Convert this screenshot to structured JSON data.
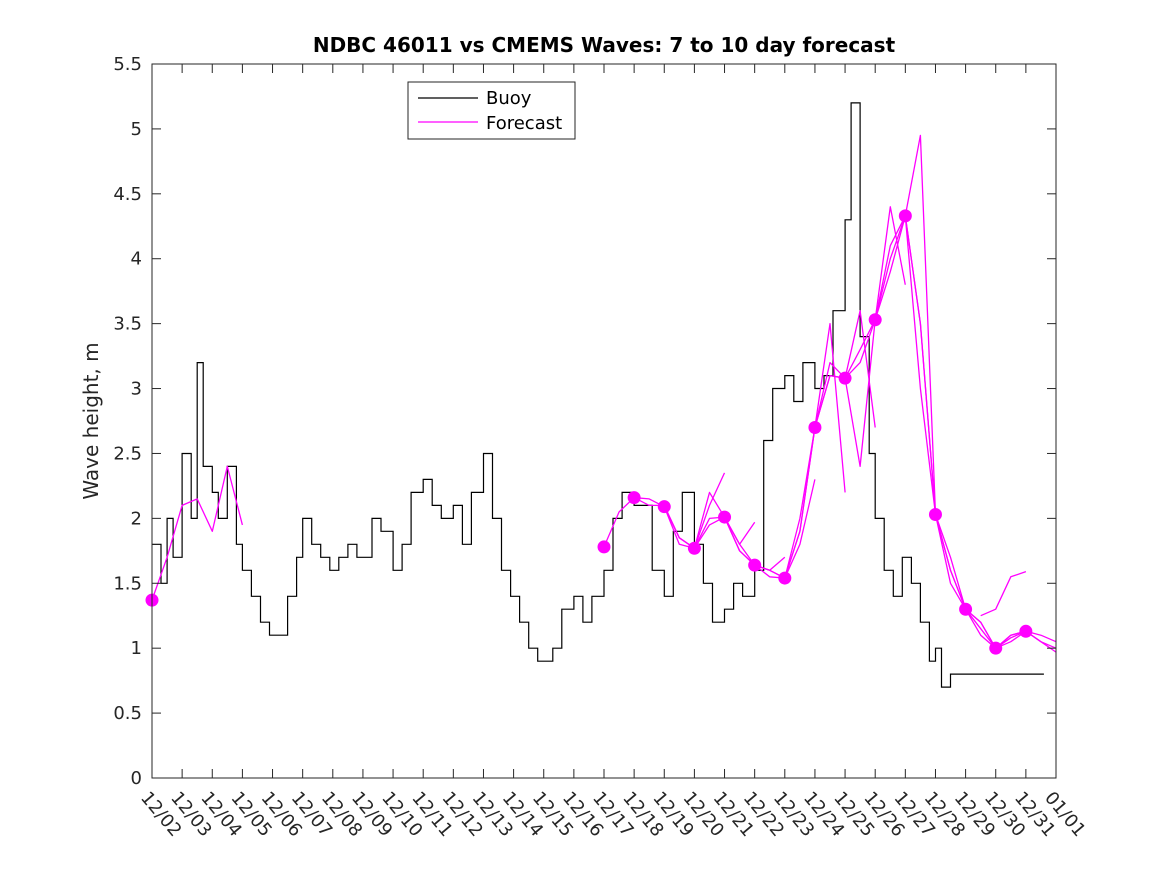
{
  "chart_data": {
    "type": "line",
    "title": "NDBC 46011 vs CMEMS Waves: 7 to 10 day forecast",
    "xlabel": "",
    "ylabel": "Wave height, m",
    "xlim": [
      "12/02",
      "01/01"
    ],
    "ylim": [
      0,
      5.5
    ],
    "y_ticks": [
      "0",
      "0.5",
      "1",
      "1.5",
      "2",
      "2.5",
      "3",
      "3.5",
      "4",
      "4.5",
      "5",
      "5.5"
    ],
    "x_ticks": [
      "12/02",
      "12/03",
      "12/04",
      "12/05",
      "12/06",
      "12/07",
      "12/08",
      "12/09",
      "12/10",
      "12/11",
      "12/12",
      "12/13",
      "12/14",
      "12/15",
      "12/16",
      "12/17",
      "12/18",
      "12/19",
      "12/20",
      "12/21",
      "12/22",
      "12/23",
      "12/24",
      "12/25",
      "12/26",
      "12/27",
      "12/28",
      "12/29",
      "12/30",
      "12/31",
      "01/01"
    ],
    "grid": false,
    "legend_position": "top-left",
    "colors": {
      "buoy": "#000000",
      "forecast": "#ff00ff"
    },
    "buoy": {
      "name": "Buoy",
      "x": [
        0.0,
        0.3,
        0.5,
        0.7,
        1.0,
        1.3,
        1.5,
        1.7,
        2.0,
        2.2,
        2.5,
        2.8,
        3.0,
        3.3,
        3.6,
        3.9,
        4.2,
        4.5,
        4.8,
        5.0,
        5.3,
        5.6,
        5.9,
        6.2,
        6.5,
        6.8,
        7.0,
        7.3,
        7.6,
        8.0,
        8.3,
        8.6,
        9.0,
        9.3,
        9.6,
        10.0,
        10.3,
        10.6,
        11.0,
        11.3,
        11.6,
        11.9,
        12.2,
        12.5,
        12.8,
        13.0,
        13.3,
        13.6,
        14.0,
        14.3,
        14.6,
        15.0,
        15.3,
        15.6,
        16.0,
        16.3,
        16.6,
        17.0,
        17.3,
        17.6,
        18.0,
        18.3,
        18.6,
        19.0,
        19.3,
        19.6,
        20.0,
        20.3,
        20.6,
        21.0,
        21.3,
        21.6,
        22.0,
        22.3,
        22.6,
        23.0,
        23.2,
        23.5,
        23.8,
        24.0,
        24.3,
        24.6,
        24.9,
        25.2,
        25.5,
        25.8,
        26.0,
        26.2,
        26.5,
        26.8,
        27.0,
        27.3,
        27.6,
        28.0,
        28.3,
        28.6,
        29.0,
        29.3,
        29.6
      ],
      "y": [
        1.8,
        1.5,
        2.0,
        1.7,
        2.5,
        2.0,
        3.2,
        2.4,
        2.2,
        2.0,
        2.4,
        1.8,
        1.6,
        1.4,
        1.2,
        1.1,
        1.1,
        1.4,
        1.7,
        2.0,
        1.8,
        1.7,
        1.6,
        1.7,
        1.8,
        1.7,
        1.7,
        2.0,
        1.9,
        1.6,
        1.8,
        2.2,
        2.3,
        2.1,
        2.0,
        2.1,
        1.8,
        2.2,
        2.5,
        2.0,
        1.6,
        1.4,
        1.2,
        1.0,
        0.9,
        0.9,
        1.0,
        1.3,
        1.4,
        1.2,
        1.4,
        1.6,
        2.0,
        2.2,
        2.1,
        2.1,
        1.6,
        1.4,
        1.9,
        2.2,
        1.8,
        1.5,
        1.2,
        1.3,
        1.5,
        1.4,
        1.6,
        2.6,
        3.0,
        3.1,
        2.9,
        3.2,
        3.0,
        3.1,
        3.6,
        4.3,
        5.2,
        3.4,
        2.5,
        2.0,
        1.6,
        1.4,
        1.7,
        1.5,
        1.2,
        0.9,
        1.0,
        0.7,
        0.8,
        0.8,
        0.8,
        0.8,
        0.8,
        0.8,
        0.8,
        0.8,
        0.8,
        0.8,
        0.8
      ]
    },
    "forecast": {
      "name": "Forecast",
      "segments": [
        {
          "x": [
            0.0,
            0.5,
            1.0,
            1.5,
            2.0,
            2.5,
            3.0
          ],
          "y": [
            1.37,
            1.7,
            2.1,
            2.15,
            1.9,
            2.4,
            1.95
          ]
        },
        {
          "x": [
            15.0,
            15.5,
            16.0,
            16.5,
            17.0,
            17.5,
            18.0,
            18.5,
            19.0
          ],
          "y": [
            1.78,
            2.05,
            2.16,
            2.1,
            2.1,
            1.85,
            1.77,
            2.1,
            2.35
          ]
        },
        {
          "x": [
            16.0,
            16.5,
            17.0,
            17.5,
            18.0,
            18.5,
            19.0,
            19.5,
            20.0
          ],
          "y": [
            2.16,
            2.15,
            2.09,
            1.8,
            1.77,
            2.2,
            2.01,
            1.8,
            1.97
          ]
        },
        {
          "x": [
            17.0,
            17.5,
            18.0,
            18.5,
            19.0,
            19.5,
            20.0,
            20.5,
            21.0
          ],
          "y": [
            2.09,
            1.85,
            1.77,
            1.95,
            2.01,
            1.75,
            1.64,
            1.6,
            1.7
          ]
        },
        {
          "x": [
            18.0,
            18.5,
            19.0,
            19.5,
            20.0,
            20.5,
            21.0,
            21.5,
            22.0
          ],
          "y": [
            1.77,
            2.0,
            2.01,
            1.8,
            1.64,
            1.6,
            1.54,
            1.8,
            2.3
          ]
        },
        {
          "x": [
            19.0,
            19.5,
            20.0,
            20.5,
            21.0,
            21.5,
            22.0,
            22.5,
            23.0
          ],
          "y": [
            2.01,
            1.75,
            1.64,
            1.6,
            1.54,
            1.9,
            2.7,
            3.5,
            2.2
          ]
        },
        {
          "x": [
            20.0,
            20.5,
            21.0,
            21.5,
            22.0,
            22.5,
            23.0,
            23.5,
            24.0
          ],
          "y": [
            1.64,
            1.55,
            1.54,
            1.9,
            2.7,
            3.2,
            3.08,
            3.6,
            2.7
          ]
        },
        {
          "x": [
            21.0,
            21.5,
            22.0,
            22.5,
            23.0,
            23.5,
            24.0,
            24.5,
            25.0
          ],
          "y": [
            1.54,
            2.0,
            2.7,
            3.1,
            3.08,
            2.4,
            3.53,
            4.4,
            3.8
          ]
        },
        {
          "x": [
            22.0,
            22.5,
            23.0,
            23.5,
            24.0,
            24.5,
            25.0,
            25.5,
            26.0
          ],
          "y": [
            2.7,
            3.1,
            3.08,
            3.3,
            3.53,
            4.1,
            4.33,
            3.5,
            2.03
          ]
        },
        {
          "x": [
            23.0,
            23.5,
            24.0,
            24.5,
            25.0,
            25.5,
            26.0,
            26.5,
            27.0
          ],
          "y": [
            3.08,
            3.2,
            3.53,
            3.9,
            4.33,
            4.95,
            2.03,
            1.6,
            1.3
          ]
        },
        {
          "x": [
            24.0,
            24.5,
            25.0,
            25.5,
            26.0,
            26.5,
            27.0,
            27.5,
            28.0
          ],
          "y": [
            3.53,
            4.0,
            4.33,
            3.0,
            2.03,
            1.7,
            1.3,
            1.1,
            1.0
          ]
        },
        {
          "x": [
            25.0,
            25.5,
            26.0,
            26.5,
            27.0,
            27.5,
            28.0,
            28.5,
            29.0
          ],
          "y": [
            4.33,
            3.5,
            2.03,
            1.6,
            1.3,
            1.2,
            1.0,
            1.1,
            1.13
          ]
        },
        {
          "x": [
            26.0,
            26.5,
            27.0,
            27.5,
            28.0,
            28.5,
            29.0,
            29.5,
            30.0
          ],
          "y": [
            2.03,
            1.5,
            1.3,
            1.2,
            1.0,
            1.05,
            1.13,
            1.05,
            0.97
          ]
        },
        {
          "x": [
            27.0,
            27.5,
            28.0,
            28.5,
            29.0,
            29.5,
            30.0
          ],
          "y": [
            1.3,
            1.15,
            1.0,
            1.1,
            1.13,
            1.1,
            1.05
          ]
        },
        {
          "x": [
            28.0,
            28.5,
            29.0,
            29.5,
            30.0
          ],
          "y": [
            1.0,
            1.08,
            1.13,
            1.05,
            1.0
          ]
        },
        {
          "x": [
            27.5,
            28.0,
            28.5,
            29.0
          ],
          "y": [
            1.25,
            1.3,
            1.55,
            1.59
          ]
        }
      ],
      "markers": {
        "x": [
          0,
          15,
          16,
          17,
          18,
          19,
          20,
          21,
          22,
          23,
          24,
          25,
          26,
          27,
          28,
          29
        ],
        "y": [
          1.37,
          1.78,
          2.16,
          2.09,
          1.77,
          2.01,
          1.64,
          1.54,
          2.7,
          3.08,
          3.53,
          4.33,
          2.03,
          1.3,
          1.0,
          1.13
        ]
      }
    }
  }
}
